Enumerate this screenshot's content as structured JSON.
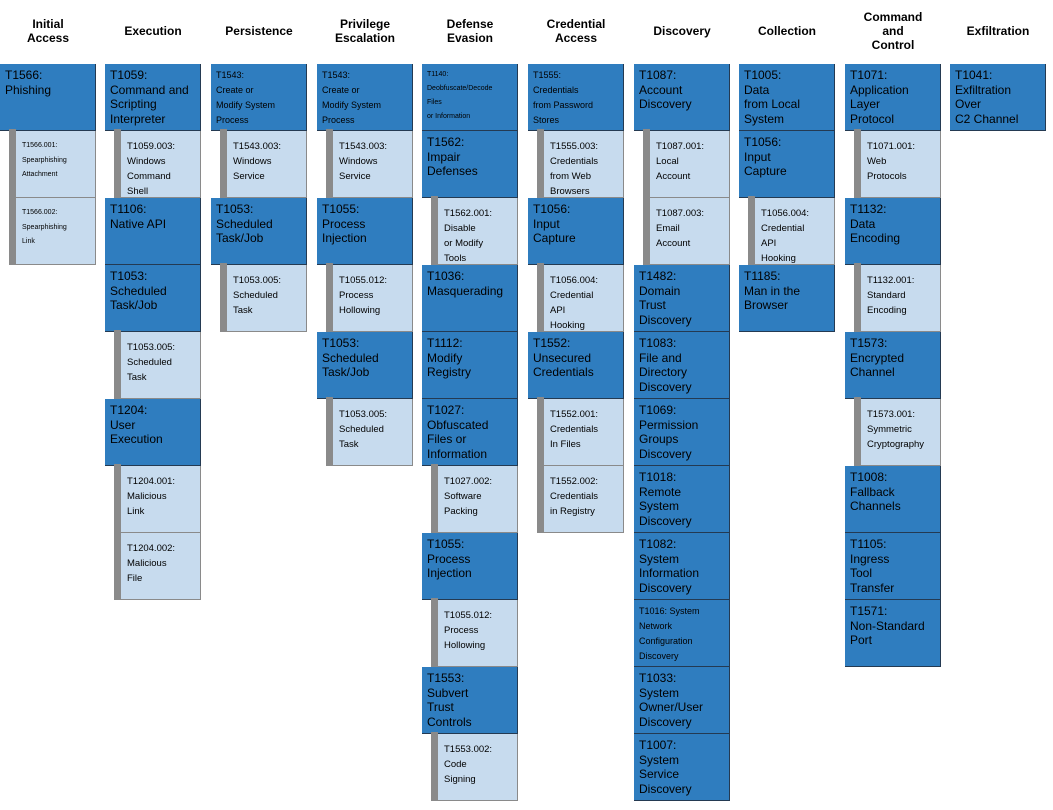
{
  "tactics": [
    {
      "name": "Initial\nAccess",
      "items": [
        {
          "label": "T1566:\nPhishing",
          "subs": [
            "T1566.001:\nSpearphishing\nAttachment",
            "T1566.002:\nSpearphishing\nLink"
          ]
        }
      ]
    },
    {
      "name": "Execution",
      "items": [
        {
          "label": "T1059:\nCommand and\nScripting\nInterpreter",
          "subs": [
            "T1059.003:\nWindows\nCommand\nShell"
          ]
        },
        {
          "label": "T1106:\nNative API",
          "subs": []
        },
        {
          "label": "T1053:\nScheduled\nTask/Job",
          "subs": [
            "T1053.005:\nScheduled\nTask"
          ]
        },
        {
          "label": "T1204:\nUser\nExecution",
          "subs": [
            "T1204.001:\nMalicious\nLink",
            "T1204.002:\nMalicious\nFile"
          ]
        }
      ]
    },
    {
      "name": "Persistence",
      "items": [
        {
          "label": "T1543:\nCreate or\nModify System\nProcess",
          "subs": [
            "T1543.003:\nWindows\nService"
          ]
        },
        {
          "label": "T1053:\nScheduled\nTask/Job",
          "subs": [
            "T1053.005:\nScheduled\nTask"
          ]
        }
      ]
    },
    {
      "name": "Privilege\nEscalation",
      "items": [
        {
          "label": "T1543:\nCreate or\nModify System\nProcess",
          "subs": [
            "T1543.003:\nWindows\nService"
          ]
        },
        {
          "label": "T1055:\nProcess\nInjection",
          "subs": [
            "T1055.012:\nProcess\nHollowing"
          ]
        },
        {
          "label": "T1053:\nScheduled\nTask/Job",
          "subs": [
            "T1053.005:\nScheduled\nTask"
          ]
        }
      ]
    },
    {
      "name": "Defense\nEvasion",
      "items": [
        {
          "label": "T1140:\nDeobfuscate/Decode\nFiles\nor Information",
          "subs": []
        },
        {
          "label": "T1562:\nImpair\nDefenses",
          "subs": [
            "T1562.001:\nDisable\nor Modify\nTools"
          ]
        },
        {
          "label": "T1036:\nMasquerading",
          "subs": []
        },
        {
          "label": "T1112:\nModify\nRegistry",
          "subs": []
        },
        {
          "label": "T1027:\nObfuscated\nFiles or\nInformation",
          "subs": [
            "T1027.002:\nSoftware\nPacking"
          ]
        },
        {
          "label": "T1055:\nProcess\nInjection",
          "subs": [
            "T1055.012:\nProcess\nHollowing"
          ]
        },
        {
          "label": "T1553:\nSubvert\nTrust\nControls",
          "subs": [
            "T1553.002:\nCode\nSigning"
          ]
        }
      ]
    },
    {
      "name": "Credential\nAccess",
      "items": [
        {
          "label": "T1555:\nCredentials\nfrom Password\nStores",
          "subs": [
            "T1555.003:\nCredentials\nfrom Web\nBrowsers"
          ]
        },
        {
          "label": "T1056:\nInput\nCapture",
          "subs": [
            "T1056.004:\nCredential\nAPI\nHooking"
          ]
        },
        {
          "label": "T1552:\nUnsecured\nCredentials",
          "subs": [
            "T1552.001:\nCredentials\nIn Files",
            "T1552.002:\nCredentials\nin Registry"
          ]
        }
      ]
    },
    {
      "name": "Discovery",
      "items": [
        {
          "label": "T1087:\nAccount\nDiscovery",
          "subs": [
            "T1087.001:\nLocal\nAccount",
            "T1087.003:\nEmail\nAccount"
          ]
        },
        {
          "label": "T1482:\nDomain\nTrust\nDiscovery",
          "subs": []
        },
        {
          "label": "T1083:\nFile and\nDirectory\nDiscovery",
          "subs": []
        },
        {
          "label": "T1069:\nPermission\nGroups\nDiscovery",
          "subs": []
        },
        {
          "label": "T1018:\nRemote\nSystem\nDiscovery",
          "subs": []
        },
        {
          "label": "T1082:\nSystem\nInformation\nDiscovery",
          "subs": []
        },
        {
          "label": "T1016: System\nNetwork\nConfiguration\nDiscovery",
          "subs": []
        },
        {
          "label": "T1033:\nSystem\nOwner/User\nDiscovery",
          "subs": []
        },
        {
          "label": "T1007:\nSystem\nService\nDiscovery",
          "subs": []
        }
      ]
    },
    {
      "name": "Collection",
      "items": [
        {
          "label": "T1005:\nData\nfrom Local\nSystem",
          "subs": []
        },
        {
          "label": "T1056:\nInput\nCapture",
          "subs": [
            "T1056.004:\nCredential\nAPI\nHooking"
          ]
        },
        {
          "label": "T1185:\nMan in the\nBrowser",
          "subs": []
        }
      ]
    },
    {
      "name": "Command\nand\nControl",
      "items": [
        {
          "label": "T1071:\nApplication\nLayer\nProtocol",
          "subs": [
            "T1071.001:\nWeb\nProtocols"
          ]
        },
        {
          "label": "T1132:\nData\nEncoding",
          "subs": [
            "T1132.001:\nStandard\nEncoding"
          ]
        },
        {
          "label": "T1573:\nEncrypted\nChannel",
          "subs": [
            "T1573.001:\nSymmetric\nCryptography"
          ]
        },
        {
          "label": "T1008:\nFallback\nChannels",
          "subs": []
        },
        {
          "label": "T1105:\nIngress\nTool\nTransfer",
          "subs": []
        },
        {
          "label": "T1571:\nNon-Standard\nPort",
          "subs": []
        }
      ]
    },
    {
      "name": "Exfiltration",
      "items": [
        {
          "label": "T1041:\nExfiltration\nOver\nC2 Channel",
          "subs": []
        }
      ]
    }
  ],
  "colors": {
    "technique": "#2f7dbf",
    "subtechnique": "#c7dbee",
    "stripe": "#8a8a8a"
  }
}
